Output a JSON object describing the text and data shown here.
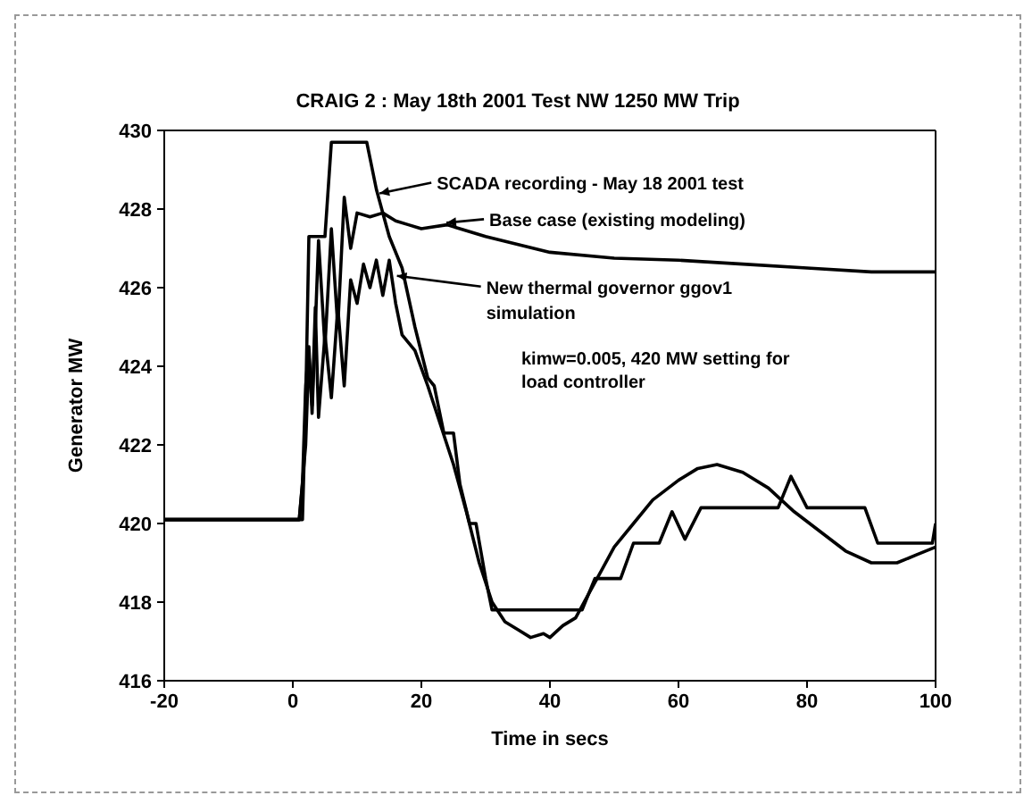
{
  "chart_data": {
    "type": "line",
    "title": "CRAIG 2 : May 18th 2001 Test NW 1250 MW Trip",
    "xlabel": "Time in secs",
    "ylabel": "Generator MW",
    "xlim": [
      -20,
      100
    ],
    "xticks": [
      -20,
      0,
      20,
      40,
      60,
      80,
      100
    ],
    "ylim": [
      416,
      430
    ],
    "yticks": [
      416,
      418,
      420,
      422,
      424,
      426,
      428,
      430
    ],
    "marker": "none",
    "line_style": "solid",
    "series": [
      {
        "color": "#000000",
        "x": [
          -20,
          1.5,
          2,
          2.5,
          5,
          6,
          11.5,
          13,
          15,
          17,
          19,
          21,
          22,
          23.5,
          25,
          26,
          27.5,
          28.5,
          30,
          31,
          45,
          47,
          51,
          53,
          57,
          59,
          61,
          63.5,
          75.5,
          77.5,
          80,
          89,
          91,
          99.5,
          100
        ],
        "values": [
          420.1,
          420.1,
          423,
          427.3,
          427.3,
          429.7,
          429.7,
          428.5,
          427.3,
          426.5,
          425,
          423.7,
          423.5,
          422.3,
          422.3,
          421,
          420,
          420,
          418.6,
          417.8,
          417.8,
          418.6,
          418.6,
          419.5,
          419.5,
          420.3,
          419.6,
          420.4,
          420.4,
          421.2,
          420.4,
          420.4,
          419.5,
          419.5,
          420
        ]
      },
      {
        "color": "#000000",
        "x": [
          -20,
          1,
          1.5,
          2,
          2.5,
          3,
          3.5,
          4,
          5,
          6,
          7,
          8,
          9,
          10,
          12,
          14,
          16,
          18,
          20,
          24,
          30,
          40,
          50,
          60,
          70,
          80,
          90,
          100
        ],
        "values": [
          420.1,
          420.1,
          421,
          423.5,
          424.5,
          422.8,
          425,
          427.2,
          424.5,
          427.5,
          425,
          428.3,
          427,
          427.9,
          427.8,
          427.9,
          427.7,
          427.6,
          427.5,
          427.6,
          427.3,
          426.9,
          426.75,
          426.7,
          426.6,
          426.5,
          426.4,
          426.4
        ]
      },
      {
        "color": "#000000",
        "x": [
          -20,
          1,
          2,
          2.5,
          3,
          3.5,
          4,
          5,
          6,
          7,
          8,
          9,
          10,
          11,
          12,
          13,
          14,
          15,
          16,
          17,
          19,
          21,
          23,
          25,
          27,
          29,
          31,
          33,
          35,
          37,
          39,
          40,
          42,
          44,
          46,
          48,
          50,
          53,
          56,
          60,
          63,
          66,
          70,
          74,
          78,
          82,
          86,
          90,
          94,
          97,
          100
        ],
        "values": [
          420.1,
          420.1,
          422,
          424.3,
          423,
          425.5,
          422.7,
          424.8,
          423.2,
          425.5,
          423.5,
          426.2,
          425.6,
          426.6,
          426,
          426.7,
          425.8,
          426.7,
          425.6,
          424.8,
          424.4,
          423.5,
          422.5,
          421.5,
          420.3,
          419,
          418,
          417.5,
          417.3,
          417.1,
          417.2,
          417.1,
          417.4,
          417.6,
          418.2,
          418.8,
          419.4,
          420,
          420.6,
          421.1,
          421.4,
          421.5,
          421.3,
          420.9,
          420.3,
          419.8,
          419.3,
          419,
          419,
          419.2,
          419.4
        ]
      }
    ],
    "annotations": [
      {
        "text": "SCADA recording - May 18 2001 test",
        "x": 13.5,
        "y": 428.4
      },
      {
        "text": "Base case (existing modeling)",
        "x": 23.9,
        "y": 427.65
      },
      {
        "text": "New thermal governor ggov1 simulation",
        "x": 16.2,
        "y": 426.3
      },
      "kimw=0.005, 420 MW setting for load controller"
    ]
  }
}
